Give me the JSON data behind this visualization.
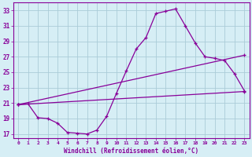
{
  "xlabel": "Windchill (Refroidissement éolien,°C)",
  "background_color": "#d6eef5",
  "grid_color": "#aaccd8",
  "line_color": "#880099",
  "xlim": [
    -0.5,
    23.5
  ],
  "ylim": [
    16.5,
    34.0
  ],
  "xticks": [
    0,
    1,
    2,
    3,
    4,
    5,
    6,
    7,
    8,
    9,
    10,
    11,
    12,
    13,
    14,
    15,
    16,
    17,
    18,
    19,
    20,
    21,
    22,
    23
  ],
  "yticks": [
    17,
    19,
    21,
    23,
    25,
    27,
    29,
    31,
    33
  ],
  "line1_x": [
    0,
    1,
    2,
    3,
    4,
    5,
    6,
    7,
    8,
    9,
    10,
    11,
    12,
    13,
    14,
    15,
    16,
    17,
    18,
    19,
    20,
    21,
    22,
    23
  ],
  "line1_y": [
    20.8,
    20.9,
    19.1,
    19.0,
    18.4,
    17.2,
    17.1,
    17.0,
    17.5,
    19.3,
    22.3,
    25.2,
    28.0,
    29.5,
    32.6,
    32.9,
    33.2,
    31.0,
    28.8,
    27.0,
    26.8,
    26.5,
    24.8,
    22.6
  ],
  "line2_x": [
    0,
    23
  ],
  "line2_y": [
    20.8,
    27.2
  ],
  "line3_x": [
    0,
    23
  ],
  "line3_y": [
    20.8,
    22.5
  ]
}
